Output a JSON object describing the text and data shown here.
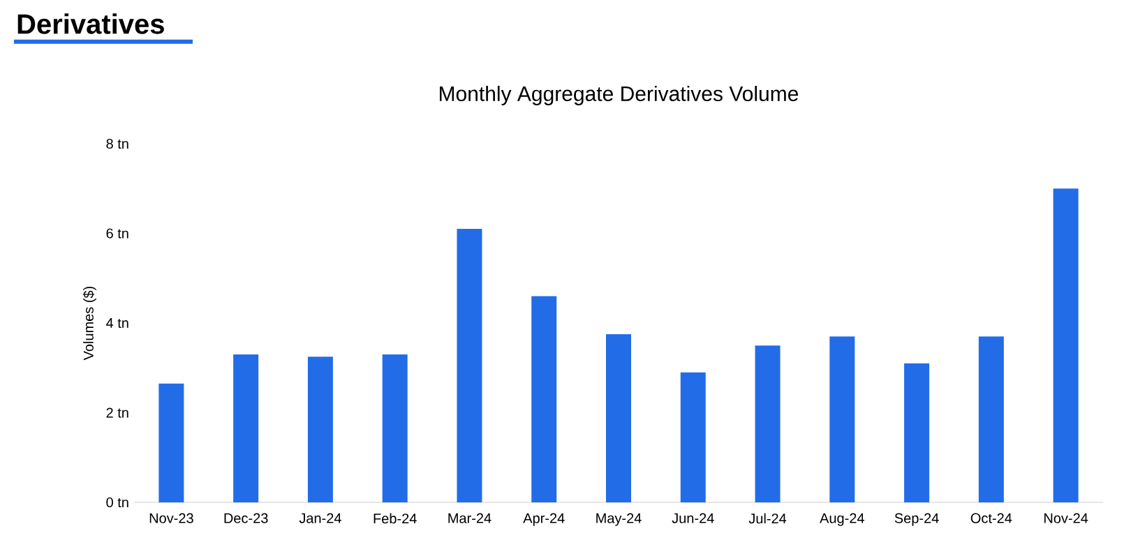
{
  "chart_data": {
    "type": "bar",
    "title": "Monthly Aggregate Derivatives Volume",
    "ylabel": "Volumes ($)",
    "annotations": [
      "Derivatives"
    ],
    "categories": [
      "Nov-23",
      "Dec-23",
      "Jan-24",
      "Feb-24",
      "Mar-24",
      "Apr-24",
      "May-24",
      "Jun-24",
      "Jul-24",
      "Aug-24",
      "Sep-24",
      "Oct-24",
      "Nov-24"
    ],
    "values": [
      2.65,
      3.3,
      3.25,
      3.3,
      6.1,
      4.6,
      3.75,
      2.9,
      3.5,
      3.7,
      3.1,
      3.7,
      7.0
    ],
    "color": "#226ce8",
    "ylim": [
      0,
      8
    ],
    "yticks": [
      {
        "value": 0,
        "label": "0 tn"
      },
      {
        "value": 2,
        "label": "2 tn"
      },
      {
        "value": 4,
        "label": "4 tn"
      },
      {
        "value": 6,
        "label": "6 tn"
      },
      {
        "value": 8,
        "label": "8 tn"
      }
    ],
    "grid": false
  }
}
